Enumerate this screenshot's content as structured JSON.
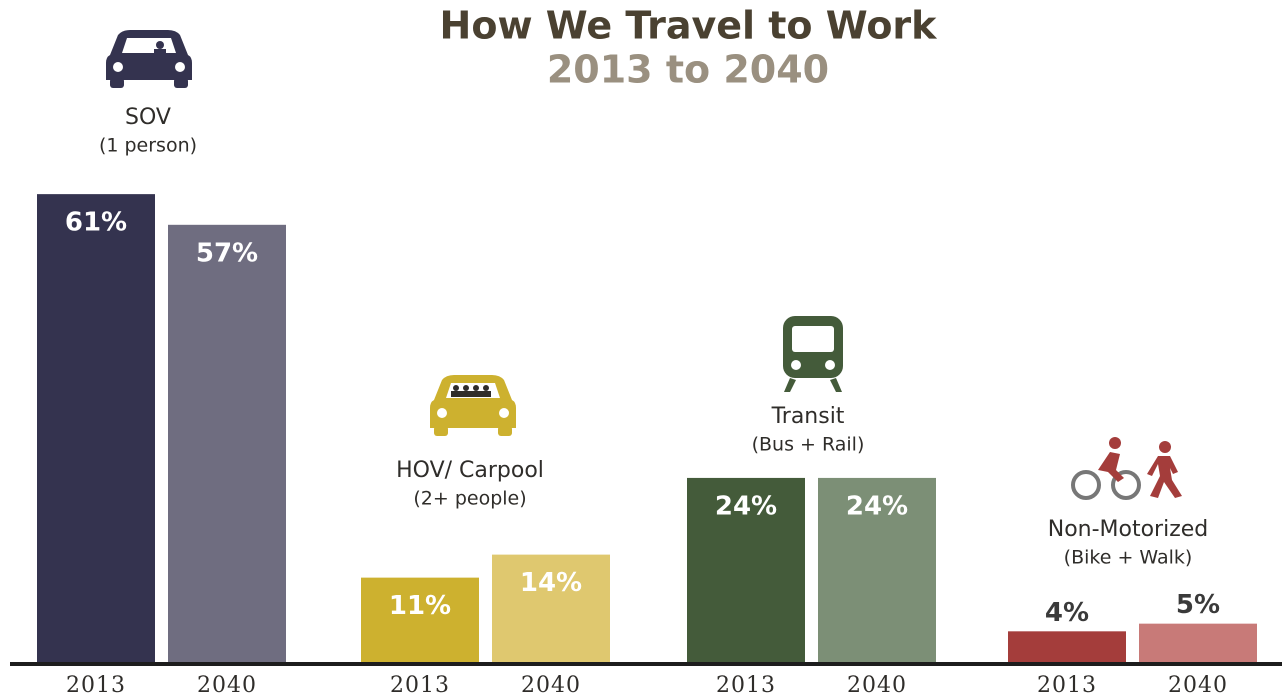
{
  "chart_data": {
    "type": "bar",
    "title": "How We Travel to Work",
    "subtitle": "2013 to 2040",
    "groups": [
      {
        "label": "SOV",
        "sublabel": "(1 person)",
        "categories": [
          "2013",
          "2040"
        ],
        "values": [
          61,
          57
        ],
        "value_labels": [
          "61%",
          "57%"
        ],
        "colors": [
          "#34334f",
          "#6f6d80"
        ]
      },
      {
        "label": "HOV/ Carpool",
        "sublabel": "(2+ people)",
        "categories": [
          "2013",
          "2040"
        ],
        "values": [
          11,
          14
        ],
        "value_labels": [
          "11%",
          "14%"
        ],
        "colors": [
          "#cdb12f",
          "#dfc86f"
        ]
      },
      {
        "label": "Transit",
        "sublabel": "(Bus + Rail)",
        "categories": [
          "2013",
          "2040"
        ],
        "values": [
          24,
          24
        ],
        "value_labels": [
          "24%",
          "24%"
        ],
        "colors": [
          "#445b3a",
          "#7c8f76"
        ]
      },
      {
        "label": "Non-Motorized",
        "sublabel": "(Bike + Walk)",
        "categories": [
          "2013",
          "2040"
        ],
        "values": [
          4,
          5
        ],
        "value_labels": [
          "4%",
          "5%"
        ],
        "colors": [
          "#a43d3b",
          "#c87a78"
        ]
      }
    ]
  }
}
